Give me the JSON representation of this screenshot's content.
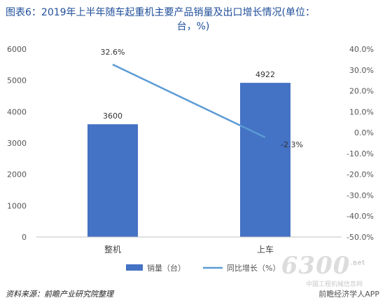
{
  "title": {
    "line1": "图表6：2019年上半年随车起重机主要产品销量及出口增长情况(单位：",
    "line2": "台，%)"
  },
  "source": "资料来源：前瞻产业研究院整理",
  "watermark": "前瞻经济学人APP",
  "logo": {
    "text": "6300",
    "sup": ".net",
    "sub": "中国工程机械信息网"
  },
  "colors": {
    "bar": "#4472c4",
    "line": "#5b9bd5"
  },
  "chart_data": {
    "type": "bar",
    "categories": [
      "整机",
      "上车"
    ],
    "series": [
      {
        "name": "销量（台）",
        "type": "bar",
        "axis": "left",
        "values": [
          3600,
          4922
        ],
        "labels": [
          "3600",
          "4922"
        ]
      },
      {
        "name": "同比增长（%）",
        "type": "line",
        "axis": "right",
        "values": [
          32.6,
          -2.3
        ],
        "labels": [
          "32.6%",
          "-2.3%"
        ]
      }
    ],
    "y_left": {
      "ylim": [
        0,
        6000
      ],
      "ticks": [
        0,
        1000,
        2000,
        3000,
        4000,
        5000,
        6000
      ],
      "tick_labels": [
        "0",
        "1000",
        "2000",
        "3000",
        "4000",
        "5000",
        "6000"
      ]
    },
    "y_right": {
      "ylim": [
        -50,
        40
      ],
      "ticks": [
        40,
        30,
        20,
        10,
        0,
        -10,
        -20,
        -30,
        -40,
        -50
      ],
      "tick_labels": [
        "40.0%",
        "30.0%",
        "20.0%",
        "10.0%",
        "0.0%",
        "-10.0%",
        "-20.0%",
        "-30.0%",
        "-40.0%",
        "-50.0%"
      ]
    },
    "grid": false,
    "legend": "bottom"
  }
}
